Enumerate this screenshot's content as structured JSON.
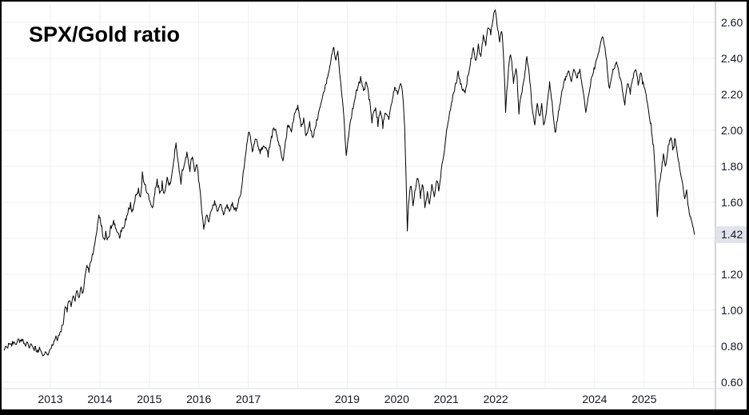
{
  "title": "SPX/Gold ratio",
  "last_price_badge": {
    "value": "1.42"
  },
  "colors": {
    "background": "#ffffff",
    "frame": "#000000",
    "grid": "#eef0f2",
    "axis_line_right": "#a6aab3",
    "axis_line_bottom": "#d9dce1",
    "text": "#131722",
    "series": "#000000",
    "badge_bg": "#e1e3ea",
    "badge_text": "#131722"
  },
  "chart_data": {
    "type": "line",
    "title": "SPX/Gold ratio",
    "grid": true,
    "legend": false,
    "y_axis": {
      "position": "right",
      "range": [
        0.55,
        2.72
      ],
      "tick_labels": [
        "2.60",
        "2.40",
        "2.20",
        "2.00",
        "1.80",
        "1.60",
        "1.40",
        "1.20",
        "1.00",
        "0.80",
        "0.60"
      ],
      "last_value": 1.42
    },
    "x_axis": {
      "range": [
        2012.05,
        2026.1
      ],
      "visible_tick_labels": [
        "2013",
        "2014",
        "2015",
        "2016",
        "2017",
        "2019",
        "2020",
        "2021",
        "2022",
        "2024",
        "2025"
      ],
      "gridline_years": [
        2013,
        2014,
        2015,
        2016,
        2017,
        2018,
        2019,
        2020,
        2021,
        2022,
        2023,
        2024,
        2025,
        2026
      ]
    },
    "series": [
      {
        "name": "SPX/Gold ratio",
        "color": "#000000",
        "points": [
          [
            2012.06,
            0.78
          ],
          [
            2012.1,
            0.8
          ],
          [
            2012.14,
            0.79
          ],
          [
            2012.18,
            0.815
          ],
          [
            2012.22,
            0.8
          ],
          [
            2012.26,
            0.825
          ],
          [
            2012.3,
            0.81
          ],
          [
            2012.34,
            0.835
          ],
          [
            2012.38,
            0.82
          ],
          [
            2012.42,
            0.84
          ],
          [
            2012.46,
            0.815
          ],
          [
            2012.5,
            0.8
          ],
          [
            2012.54,
            0.82
          ],
          [
            2012.58,
            0.79
          ],
          [
            2012.62,
            0.81
          ],
          [
            2012.66,
            0.785
          ],
          [
            2012.7,
            0.8
          ],
          [
            2012.74,
            0.78
          ],
          [
            2012.78,
            0.795
          ],
          [
            2012.82,
            0.765
          ],
          [
            2012.86,
            0.75
          ],
          [
            2012.9,
            0.77
          ],
          [
            2012.94,
            0.752
          ],
          [
            2012.98,
            0.775
          ],
          [
            2013.02,
            0.79
          ],
          [
            2013.06,
            0.81
          ],
          [
            2013.1,
            0.845
          ],
          [
            2013.14,
            0.83
          ],
          [
            2013.18,
            0.86
          ],
          [
            2013.22,
            0.88
          ],
          [
            2013.26,
            0.92
          ],
          [
            2013.3,
            1.02
          ],
          [
            2013.34,
            0.99
          ],
          [
            2013.38,
            1.05
          ],
          [
            2013.42,
            1.02
          ],
          [
            2013.46,
            1.08
          ],
          [
            2013.5,
            1.05
          ],
          [
            2013.54,
            1.11
          ],
          [
            2013.58,
            1.07
          ],
          [
            2013.62,
            1.13
          ],
          [
            2013.66,
            1.1
          ],
          [
            2013.7,
            1.19
          ],
          [
            2013.74,
            1.25
          ],
          [
            2013.78,
            1.21
          ],
          [
            2013.82,
            1.27
          ],
          [
            2013.86,
            1.31
          ],
          [
            2013.9,
            1.37
          ],
          [
            2013.94,
            1.44
          ],
          [
            2013.98,
            1.53
          ],
          [
            2014.04,
            1.47
          ],
          [
            2014.08,
            1.4
          ],
          [
            2014.12,
            1.44
          ],
          [
            2014.16,
            1.4
          ],
          [
            2014.22,
            1.47
          ],
          [
            2014.28,
            1.5
          ],
          [
            2014.34,
            1.44
          ],
          [
            2014.4,
            1.4
          ],
          [
            2014.46,
            1.46
          ],
          [
            2014.52,
            1.51
          ],
          [
            2014.58,
            1.57
          ],
          [
            2014.62,
            1.6
          ],
          [
            2014.66,
            1.56
          ],
          [
            2014.72,
            1.64
          ],
          [
            2014.78,
            1.68
          ],
          [
            2014.82,
            1.63
          ],
          [
            2014.86,
            1.77
          ],
          [
            2014.92,
            1.7
          ],
          [
            2014.96,
            1.65
          ],
          [
            2015.02,
            1.6
          ],
          [
            2015.06,
            1.57
          ],
          [
            2015.12,
            1.68
          ],
          [
            2015.16,
            1.73
          ],
          [
            2015.22,
            1.66
          ],
          [
            2015.26,
            1.72
          ],
          [
            2015.3,
            1.65
          ],
          [
            2015.36,
            1.74
          ],
          [
            2015.42,
            1.7
          ],
          [
            2015.48,
            1.8
          ],
          [
            2015.54,
            1.93
          ],
          [
            2015.58,
            1.83
          ],
          [
            2015.64,
            1.7
          ],
          [
            2015.7,
            1.8
          ],
          [
            2015.76,
            1.88
          ],
          [
            2015.82,
            1.77
          ],
          [
            2015.86,
            1.84
          ],
          [
            2015.92,
            1.77
          ],
          [
            2015.96,
            1.81
          ],
          [
            2016.02,
            1.68
          ],
          [
            2016.06,
            1.55
          ],
          [
            2016.1,
            1.45
          ],
          [
            2016.16,
            1.53
          ],
          [
            2016.2,
            1.49
          ],
          [
            2016.26,
            1.56
          ],
          [
            2016.32,
            1.61
          ],
          [
            2016.38,
            1.55
          ],
          [
            2016.44,
            1.59
          ],
          [
            2016.5,
            1.53
          ],
          [
            2016.56,
            1.58
          ],
          [
            2016.62,
            1.55
          ],
          [
            2016.68,
            1.6
          ],
          [
            2016.74,
            1.57
          ],
          [
            2016.8,
            1.6
          ],
          [
            2016.86,
            1.67
          ],
          [
            2016.92,
            1.8
          ],
          [
            2016.98,
            1.94
          ],
          [
            2017.02,
            1.99
          ],
          [
            2017.08,
            1.88
          ],
          [
            2017.16,
            1.95
          ],
          [
            2017.24,
            1.87
          ],
          [
            2017.32,
            1.91
          ],
          [
            2017.4,
            1.85
          ],
          [
            2017.48,
            1.96
          ],
          [
            2017.53,
            2.0
          ],
          [
            2017.6,
            1.94
          ],
          [
            2017.7,
            1.83
          ],
          [
            2017.8,
            2.03
          ],
          [
            2017.87,
            1.99
          ],
          [
            2017.93,
            2.09
          ],
          [
            2018.0,
            2.14
          ],
          [
            2018.07,
            2.02
          ],
          [
            2018.12,
            2.07
          ],
          [
            2018.17,
            1.97
          ],
          [
            2018.24,
            2.05
          ],
          [
            2018.3,
            1.96
          ],
          [
            2018.38,
            2.06
          ],
          [
            2018.48,
            2.16
          ],
          [
            2018.58,
            2.26
          ],
          [
            2018.66,
            2.37
          ],
          [
            2018.72,
            2.46
          ],
          [
            2018.77,
            2.39
          ],
          [
            2018.81,
            2.44
          ],
          [
            2018.87,
            2.26
          ],
          [
            2018.93,
            2.08
          ],
          [
            2018.98,
            1.86
          ],
          [
            2019.04,
            2.0
          ],
          [
            2019.12,
            2.12
          ],
          [
            2019.2,
            2.22
          ],
          [
            2019.27,
            2.3
          ],
          [
            2019.33,
            2.22
          ],
          [
            2019.38,
            2.27
          ],
          [
            2019.44,
            2.17
          ],
          [
            2019.5,
            2.04
          ],
          [
            2019.56,
            2.11
          ],
          [
            2019.62,
            2.02
          ],
          [
            2019.68,
            2.09
          ],
          [
            2019.72,
            2.01
          ],
          [
            2019.78,
            2.09
          ],
          [
            2019.84,
            2.06
          ],
          [
            2019.9,
            2.15
          ],
          [
            2019.96,
            2.24
          ],
          [
            2020.02,
            2.2
          ],
          [
            2020.08,
            2.26
          ],
          [
            2020.12,
            2.2
          ],
          [
            2020.16,
            2.02
          ],
          [
            2020.19,
            1.72
          ],
          [
            2020.215,
            1.44
          ],
          [
            2020.25,
            1.62
          ],
          [
            2020.29,
            1.69
          ],
          [
            2020.33,
            1.58
          ],
          [
            2020.38,
            1.67
          ],
          [
            2020.43,
            1.73
          ],
          [
            2020.48,
            1.62
          ],
          [
            2020.53,
            1.69
          ],
          [
            2020.57,
            1.57
          ],
          [
            2020.62,
            1.66
          ],
          [
            2020.66,
            1.59
          ],
          [
            2020.71,
            1.7
          ],
          [
            2020.76,
            1.63
          ],
          [
            2020.81,
            1.72
          ],
          [
            2020.86,
            1.68
          ],
          [
            2020.9,
            1.78
          ],
          [
            2020.95,
            1.86
          ],
          [
            2021.0,
            1.98
          ],
          [
            2021.06,
            2.08
          ],
          [
            2021.12,
            2.16
          ],
          [
            2021.18,
            2.25
          ],
          [
            2021.24,
            2.33
          ],
          [
            2021.3,
            2.26
          ],
          [
            2021.37,
            2.22
          ],
          [
            2021.43,
            2.3
          ],
          [
            2021.5,
            2.4
          ],
          [
            2021.55,
            2.46
          ],
          [
            2021.6,
            2.39
          ],
          [
            2021.65,
            2.48
          ],
          [
            2021.7,
            2.41
          ],
          [
            2021.75,
            2.53
          ],
          [
            2021.8,
            2.47
          ],
          [
            2021.85,
            2.57
          ],
          [
            2021.9,
            2.53
          ],
          [
            2021.95,
            2.62
          ],
          [
            2021.99,
            2.67
          ],
          [
            2022.04,
            2.56
          ],
          [
            2022.08,
            2.49
          ],
          [
            2022.12,
            2.55
          ],
          [
            2022.16,
            2.4
          ],
          [
            2022.2,
            2.1
          ],
          [
            2022.25,
            2.3
          ],
          [
            2022.3,
            2.42
          ],
          [
            2022.36,
            2.26
          ],
          [
            2022.42,
            2.33
          ],
          [
            2022.47,
            2.09
          ],
          [
            2022.52,
            2.2
          ],
          [
            2022.58,
            2.29
          ],
          [
            2022.63,
            2.41
          ],
          [
            2022.69,
            2.27
          ],
          [
            2022.74,
            2.12
          ],
          [
            2022.79,
            2.03
          ],
          [
            2022.84,
            2.15
          ],
          [
            2022.89,
            2.08
          ],
          [
            2022.93,
            2.15
          ],
          [
            2022.97,
            2.03
          ],
          [
            2023.03,
            2.12
          ],
          [
            2023.09,
            2.27
          ],
          [
            2023.14,
            2.16
          ],
          [
            2023.2,
            1.99
          ],
          [
            2023.27,
            2.11
          ],
          [
            2023.34,
            2.22
          ],
          [
            2023.42,
            2.3
          ],
          [
            2023.48,
            2.33
          ],
          [
            2023.53,
            2.27
          ],
          [
            2023.58,
            2.34
          ],
          [
            2023.64,
            2.29
          ],
          [
            2023.7,
            2.34
          ],
          [
            2023.77,
            2.21
          ],
          [
            2023.82,
            2.1
          ],
          [
            2023.89,
            2.21
          ],
          [
            2023.95,
            2.3
          ],
          [
            2024.0,
            2.34
          ],
          [
            2024.06,
            2.41
          ],
          [
            2024.11,
            2.47
          ],
          [
            2024.16,
            2.52
          ],
          [
            2024.22,
            2.43
          ],
          [
            2024.29,
            2.24
          ],
          [
            2024.36,
            2.32
          ],
          [
            2024.43,
            2.37
          ],
          [
            2024.5,
            2.3
          ],
          [
            2024.56,
            2.22
          ],
          [
            2024.61,
            2.14
          ],
          [
            2024.67,
            2.26
          ],
          [
            2024.72,
            2.2
          ],
          [
            2024.78,
            2.29
          ],
          [
            2024.84,
            2.33
          ],
          [
            2024.88,
            2.25
          ],
          [
            2024.93,
            2.32
          ],
          [
            2024.98,
            2.27
          ],
          [
            2025.04,
            2.2
          ],
          [
            2025.09,
            2.11
          ],
          [
            2025.14,
            2.04
          ],
          [
            2025.19,
            1.92
          ],
          [
            2025.23,
            1.74
          ],
          [
            2025.265,
            1.52
          ],
          [
            2025.3,
            1.7
          ],
          [
            2025.34,
            1.76
          ],
          [
            2025.39,
            1.87
          ],
          [
            2025.44,
            1.81
          ],
          [
            2025.49,
            1.92
          ],
          [
            2025.54,
            1.96
          ],
          [
            2025.58,
            1.89
          ],
          [
            2025.63,
            1.95
          ],
          [
            2025.68,
            1.85
          ],
          [
            2025.73,
            1.77
          ],
          [
            2025.78,
            1.7
          ],
          [
            2025.82,
            1.62
          ],
          [
            2025.86,
            1.67
          ],
          [
            2025.9,
            1.57
          ],
          [
            2025.94,
            1.52
          ],
          [
            2025.98,
            1.47
          ],
          [
            2026.02,
            1.42
          ]
        ]
      }
    ]
  }
}
